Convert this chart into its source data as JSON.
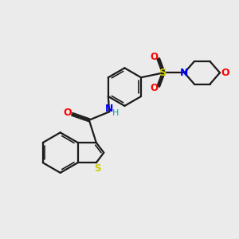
{
  "background_color": "#ebebeb",
  "bond_color": "#1a1a1a",
  "S_color": "#cccc00",
  "O_color": "#ff0000",
  "N_color": "#0000ff",
  "H_color": "#00aaaa",
  "figsize": [
    3.0,
    3.0
  ],
  "dpi": 100,
  "xlim": [
    0,
    10
  ],
  "ylim": [
    0,
    10
  ]
}
